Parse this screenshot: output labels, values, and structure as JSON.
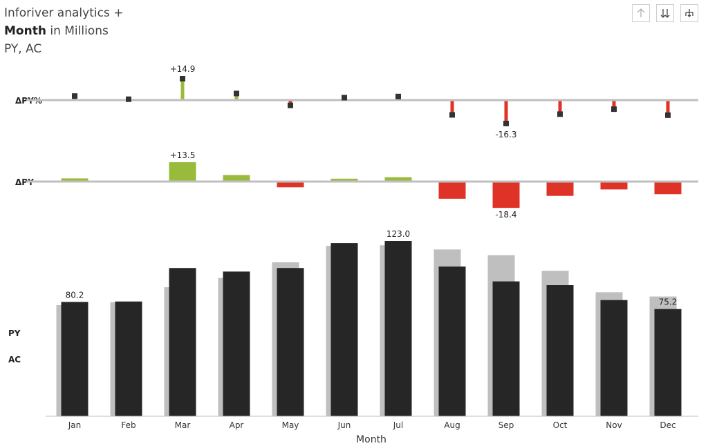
{
  "header": {
    "title_prefix": "Inforiver analytics +",
    "title_bold": "Month",
    "title_rest": " in Millions",
    "subtitle": "PY, AC"
  },
  "toolbar": {
    "buttons": [
      {
        "name": "sort-up-button",
        "icon": "arrow-up-icon"
      },
      {
        "name": "sort-down-button",
        "icon": "double-arrow-down-icon"
      },
      {
        "name": "drill-down-button",
        "icon": "hierarchy-icon"
      }
    ]
  },
  "chart_data": {
    "type": "bar",
    "xlabel": "Month",
    "categories": [
      "Jan",
      "Feb",
      "Mar",
      "Apr",
      "May",
      "Jun",
      "Jul",
      "Aug",
      "Sep",
      "Oct",
      "Nov",
      "Dec"
    ],
    "series": [
      {
        "name": "PY",
        "values": [
          78.0,
          80.0,
          90.5,
          97.0,
          108.0,
          119.5,
          120.0,
          117.0,
          113.0,
          102.0,
          87.0,
          84.0
        ]
      },
      {
        "name": "AC",
        "values": [
          80.2,
          80.5,
          104.0,
          101.5,
          104.0,
          121.5,
          123.0,
          105.0,
          94.6,
          92.0,
          81.5,
          75.2
        ]
      }
    ],
    "delta_py": {
      "label": "ΔPY",
      "values": [
        2.2,
        0.5,
        13.5,
        4.5,
        -4.0,
        2.0,
        3.0,
        -12.0,
        -18.4,
        -10.0,
        -5.5,
        -8.8
      ]
    },
    "delta_py_pct": {
      "label": "ΔPY%",
      "values": [
        2.8,
        0.6,
        14.9,
        4.6,
        -3.7,
        1.7,
        2.5,
        -10.3,
        -16.3,
        -9.8,
        -6.3,
        -10.5
      ]
    },
    "data_labels": {
      "ac_jan": "80.2",
      "ac_jul": "123.0",
      "ac_dec": "75.2",
      "delta_py_max": "+13.5",
      "delta_py_min": "-18.4",
      "delta_pct_max": "+14.9",
      "delta_pct_min": "-16.3"
    },
    "row_labels": {
      "py": "PY",
      "ac": "AC"
    },
    "colors": {
      "py": "#bfbfbf",
      "ac": "#262626",
      "positive": "#99bb3b",
      "negative": "#e03327",
      "axis": "#bfbfbf",
      "marker": "#333333"
    }
  }
}
